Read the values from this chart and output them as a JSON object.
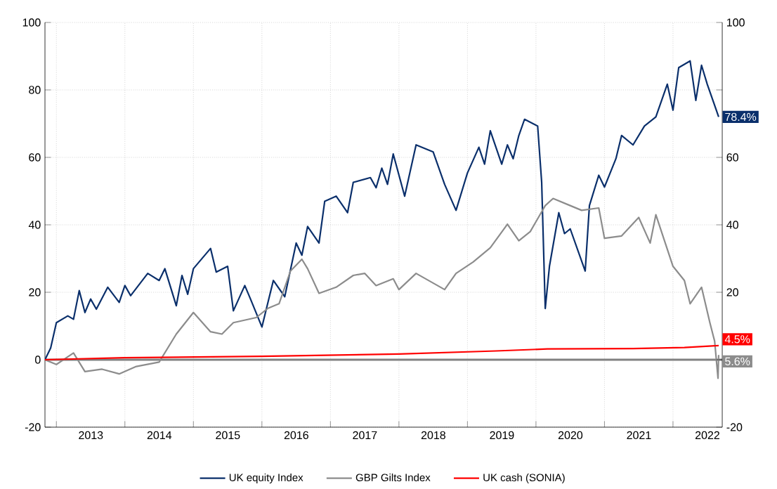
{
  "chart_data": {
    "type": "line",
    "xlim": [
      "2012-11-01",
      "2022-09-20"
    ],
    "xticks": [
      {
        "value": "2013-01-01",
        "label": null
      },
      {
        "value": "2014-01-01",
        "label": null
      },
      {
        "value": "2015-01-01",
        "label": null
      },
      {
        "value": "2016-01-01",
        "label": null
      },
      {
        "value": "2017-01-01",
        "label": null
      },
      {
        "value": "2018-01-01",
        "label": null
      },
      {
        "value": "2019-01-01",
        "label": null
      },
      {
        "value": "2020-01-01",
        "label": null
      },
      {
        "value": "2021-01-01",
        "label": null
      },
      {
        "value": "2022-01-01",
        "label": null
      },
      {
        "value": "2013-07-02",
        "label": "2013"
      },
      {
        "value": "2014-07-02",
        "label": "2014"
      },
      {
        "value": "2015-07-02",
        "label": "2015"
      },
      {
        "value": "2016-07-02",
        "label": "2016"
      },
      {
        "value": "2017-07-02",
        "label": "2017"
      },
      {
        "value": "2018-07-02",
        "label": "2018"
      },
      {
        "value": "2019-07-02",
        "label": "2019"
      },
      {
        "value": "2020-07-02",
        "label": "2020"
      },
      {
        "value": "2021-07-02",
        "label": "2021"
      },
      {
        "value": "2022-07-02",
        "label": "2022"
      }
    ],
    "ylim": [
      -20,
      100
    ],
    "yticks": [
      -20,
      0,
      20,
      40,
      60,
      80,
      100
    ],
    "y2lim": [
      -20,
      100
    ],
    "y2ticks": [
      -20,
      {
        "value": 0,
        "label": null
      },
      20,
      40,
      60,
      {
        "value": 80,
        "label": null
      },
      100
    ],
    "grid": true,
    "legend": "bottom",
    "marker": "none",
    "line_style": "solid",
    "ref_lines": [
      {
        "axis": "y",
        "value": 0,
        "color": "#808080"
      }
    ],
    "annotations": [
      "78.4%",
      "5.6%",
      "4.5%"
    ],
    "series": [
      {
        "name": "UK equity Index",
        "color": "#0a2f6b",
        "x": [
          "2012-11-01",
          "2012-12-01",
          "2013-01-01",
          "2013-03-01",
          "2013-04-01",
          "2013-05-01",
          "2013-06-01",
          "2013-07-01",
          "2013-08-01",
          "2013-10-01",
          "2013-12-01",
          "2014-01-01",
          "2014-02-01",
          "2014-05-01",
          "2014-07-01",
          "2014-08-01",
          "2014-10-01",
          "2014-11-01",
          "2014-12-01",
          "2015-01-01",
          "2015-04-01",
          "2015-05-01",
          "2015-07-01",
          "2015-08-01",
          "2015-10-01",
          "2015-11-01",
          "2016-01-01",
          "2016-02-01",
          "2016-03-01",
          "2016-05-01",
          "2016-07-01",
          "2016-08-01",
          "2016-09-01",
          "2016-11-01",
          "2016-12-01",
          "2017-02-01",
          "2017-04-01",
          "2017-05-01",
          "2017-08-01",
          "2017-09-01",
          "2017-10-01",
          "2017-11-01",
          "2017-12-01",
          "2018-02-01",
          "2018-04-01",
          "2018-07-01",
          "2018-08-01",
          "2018-09-01",
          "2018-11-01",
          "2019-01-01",
          "2019-03-01",
          "2019-04-01",
          "2019-05-01",
          "2019-07-01",
          "2019-08-01",
          "2019-09-01",
          "2019-10-01",
          "2019-11-01",
          "2020-01-10",
          "2020-02-01",
          "2020-02-20",
          "2020-03-12",
          "2020-05-01",
          "2020-06-01",
          "2020-07-01",
          "2020-09-20",
          "2020-10-12",
          "2020-12-01",
          "2021-01-01",
          "2021-03-01",
          "2021-04-01",
          "2021-06-01",
          "2021-08-01",
          "2021-10-01",
          "2021-12-01",
          "2022-01-01",
          "2022-02-01",
          "2022-04-01",
          "2022-05-01",
          "2022-06-01",
          "2022-07-01",
          "2022-09-01"
        ],
        "values": [
          0,
          3.5,
          11,
          13,
          12,
          20.5,
          14,
          18,
          15,
          21.5,
          17,
          22,
          19,
          25.6,
          23.5,
          27,
          16,
          25,
          19.4,
          27,
          33,
          26,
          27.7,
          14.5,
          22,
          18,
          9.7,
          16.6,
          23.5,
          18.7,
          34.6,
          31,
          39.5,
          34.6,
          47,
          48.5,
          43.6,
          52.6,
          54,
          51,
          56.8,
          52,
          61,
          48.5,
          63.7,
          61.6,
          56.8,
          52,
          44.3,
          55.4,
          63,
          58,
          67.9,
          58,
          63.7,
          59.6,
          66.5,
          71.3,
          69.3,
          52.6,
          15.2,
          27.7,
          43.6,
          37.4,
          38.8,
          26.3,
          45.7,
          54.7,
          51.2,
          59.6,
          66.5,
          63.7,
          69.3,
          72,
          81.7,
          74,
          86.6,
          88.6,
          76.9,
          87.3,
          81.7,
          72
        ]
      },
      {
        "name": "GBP Gilts Index",
        "color": "#8c8c8c",
        "x": [
          "2012-11-01",
          "2013-01-01",
          "2013-04-01",
          "2013-06-01",
          "2013-09-01",
          "2013-12-01",
          "2014-03-01",
          "2014-07-01",
          "2014-10-01",
          "2015-01-01",
          "2015-04-01",
          "2015-06-01",
          "2015-08-01",
          "2015-12-01",
          "2016-02-01",
          "2016-04-01",
          "2016-06-01",
          "2016-08-01",
          "2016-09-01",
          "2016-11-01",
          "2017-02-01",
          "2017-05-01",
          "2017-07-01",
          "2017-09-01",
          "2017-12-01",
          "2018-01-01",
          "2018-04-01",
          "2018-09-01",
          "2018-11-01",
          "2019-02-01",
          "2019-05-01",
          "2019-08-01",
          "2019-10-01",
          "2019-12-01",
          "2020-02-20",
          "2020-04-01",
          "2020-07-01",
          "2020-09-01",
          "2020-12-01",
          "2021-01-01",
          "2021-04-01",
          "2021-07-01",
          "2021-09-01",
          "2021-10-01",
          "2022-01-01",
          "2022-03-01",
          "2022-04-01",
          "2022-06-01",
          "2022-07-15",
          "2022-08-10",
          "2022-08-28",
          "2022-09-01"
        ],
        "values": [
          0,
          -1.4,
          2,
          -3.5,
          -2.8,
          -4.2,
          -2,
          -0.7,
          7.6,
          14,
          8.3,
          7.6,
          11,
          12.5,
          15.2,
          16.6,
          26.3,
          29.8,
          27,
          19.7,
          21.5,
          25,
          25.6,
          22,
          24,
          20.8,
          25.6,
          20.8,
          25.6,
          29,
          33.2,
          40.2,
          35.3,
          38,
          45.7,
          47.8,
          45.7,
          44.3,
          45,
          36,
          36.7,
          42.2,
          34.6,
          43,
          27.7,
          23.5,
          16.6,
          21.5,
          11,
          5.5,
          -5.5,
          1.4
        ]
      },
      {
        "name": "UK cash (SONIA)",
        "color": "#ff0000",
        "x": [
          "2012-11-01",
          "2014-01-01",
          "2016-01-01",
          "2018-01-01",
          "2019-06-01",
          "2020-03-01",
          "2021-06-01",
          "2022-03-01",
          "2022-09-01"
        ],
        "values": [
          0,
          0.6,
          1.0,
          1.7,
          2.6,
          3.2,
          3.3,
          3.6,
          4.2
        ]
      }
    ]
  }
}
